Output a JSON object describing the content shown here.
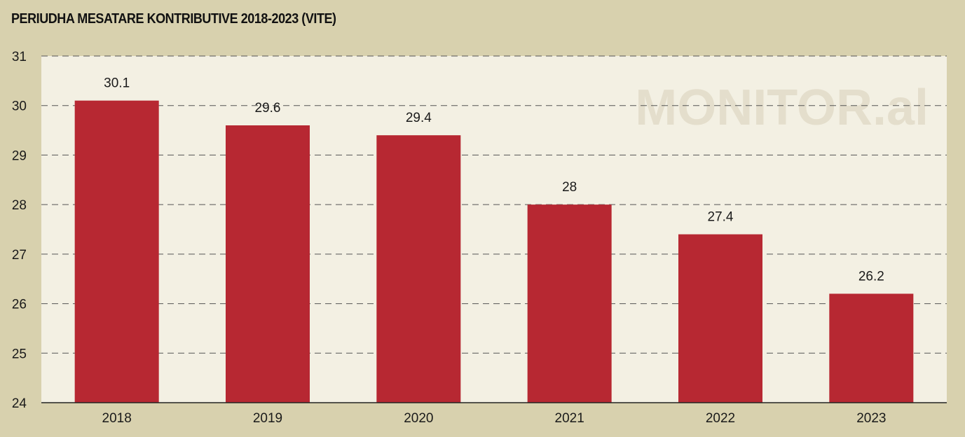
{
  "chart_data": {
    "type": "bar",
    "title": "PERIUDHA MESATARE KONTRIBUTIVE 2018-2023 (VITE)",
    "categories": [
      "2018",
      "2019",
      "2020",
      "2021",
      "2022",
      "2023"
    ],
    "values": [
      30.1,
      29.6,
      29.4,
      28,
      27.4,
      26.2
    ],
    "data_labels": [
      "30.1",
      "29.6",
      "29.4",
      "28",
      "27.4",
      "26.2"
    ],
    "xlabel": "",
    "ylabel": "",
    "ylim": [
      24,
      31
    ],
    "yticks": [
      24,
      25,
      26,
      27,
      28,
      29,
      30,
      31
    ],
    "grid": true,
    "grid_style": "dashed",
    "legend": "none",
    "watermark": "MONITOR.al",
    "colors": {
      "bar": "#b72832",
      "plot_background": "#f3f0e3",
      "page_background": "#d8d1ae",
      "grid": "#555555",
      "watermark": "#e4decb"
    }
  }
}
